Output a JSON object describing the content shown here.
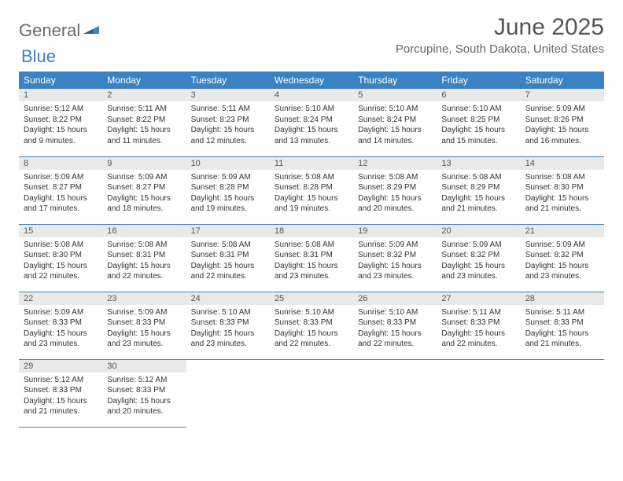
{
  "logo": {
    "text_part1": "General",
    "text_part2": "Blue",
    "text_color": "#6b6b6b",
    "accent_color": "#3b82c4"
  },
  "header": {
    "title": "June 2025",
    "location": "Porcupine, South Dakota, United States",
    "title_color": "#555555",
    "title_fontsize": 30,
    "location_color": "#666666",
    "location_fontsize": 15
  },
  "calendar": {
    "header_bg": "#3b82c4",
    "header_text_color": "#ffffff",
    "daynum_bg": "#e9e9e9",
    "daynum_color": "#555555",
    "cell_border_color": "#3b82c4",
    "body_text_color": "#333333",
    "day_names": [
      "Sunday",
      "Monday",
      "Tuesday",
      "Wednesday",
      "Thursday",
      "Friday",
      "Saturday"
    ],
    "days": [
      {
        "n": 1,
        "sunrise": "5:12 AM",
        "sunset": "8:22 PM",
        "dl": "15 hours and 9 minutes."
      },
      {
        "n": 2,
        "sunrise": "5:11 AM",
        "sunset": "8:22 PM",
        "dl": "15 hours and 11 minutes."
      },
      {
        "n": 3,
        "sunrise": "5:11 AM",
        "sunset": "8:23 PM",
        "dl": "15 hours and 12 minutes."
      },
      {
        "n": 4,
        "sunrise": "5:10 AM",
        "sunset": "8:24 PM",
        "dl": "15 hours and 13 minutes."
      },
      {
        "n": 5,
        "sunrise": "5:10 AM",
        "sunset": "8:24 PM",
        "dl": "15 hours and 14 minutes."
      },
      {
        "n": 6,
        "sunrise": "5:10 AM",
        "sunset": "8:25 PM",
        "dl": "15 hours and 15 minutes."
      },
      {
        "n": 7,
        "sunrise": "5:09 AM",
        "sunset": "8:26 PM",
        "dl": "15 hours and 16 minutes."
      },
      {
        "n": 8,
        "sunrise": "5:09 AM",
        "sunset": "8:27 PM",
        "dl": "15 hours and 17 minutes."
      },
      {
        "n": 9,
        "sunrise": "5:09 AM",
        "sunset": "8:27 PM",
        "dl": "15 hours and 18 minutes."
      },
      {
        "n": 10,
        "sunrise": "5:09 AM",
        "sunset": "8:28 PM",
        "dl": "15 hours and 19 minutes."
      },
      {
        "n": 11,
        "sunrise": "5:08 AM",
        "sunset": "8:28 PM",
        "dl": "15 hours and 19 minutes."
      },
      {
        "n": 12,
        "sunrise": "5:08 AM",
        "sunset": "8:29 PM",
        "dl": "15 hours and 20 minutes."
      },
      {
        "n": 13,
        "sunrise": "5:08 AM",
        "sunset": "8:29 PM",
        "dl": "15 hours and 21 minutes."
      },
      {
        "n": 14,
        "sunrise": "5:08 AM",
        "sunset": "8:30 PM",
        "dl": "15 hours and 21 minutes."
      },
      {
        "n": 15,
        "sunrise": "5:08 AM",
        "sunset": "8:30 PM",
        "dl": "15 hours and 22 minutes."
      },
      {
        "n": 16,
        "sunrise": "5:08 AM",
        "sunset": "8:31 PM",
        "dl": "15 hours and 22 minutes."
      },
      {
        "n": 17,
        "sunrise": "5:08 AM",
        "sunset": "8:31 PM",
        "dl": "15 hours and 22 minutes."
      },
      {
        "n": 18,
        "sunrise": "5:08 AM",
        "sunset": "8:31 PM",
        "dl": "15 hours and 23 minutes."
      },
      {
        "n": 19,
        "sunrise": "5:09 AM",
        "sunset": "8:32 PM",
        "dl": "15 hours and 23 minutes."
      },
      {
        "n": 20,
        "sunrise": "5:09 AM",
        "sunset": "8:32 PM",
        "dl": "15 hours and 23 minutes."
      },
      {
        "n": 21,
        "sunrise": "5:09 AM",
        "sunset": "8:32 PM",
        "dl": "15 hours and 23 minutes."
      },
      {
        "n": 22,
        "sunrise": "5:09 AM",
        "sunset": "8:33 PM",
        "dl": "15 hours and 23 minutes."
      },
      {
        "n": 23,
        "sunrise": "5:09 AM",
        "sunset": "8:33 PM",
        "dl": "15 hours and 23 minutes."
      },
      {
        "n": 24,
        "sunrise": "5:10 AM",
        "sunset": "8:33 PM",
        "dl": "15 hours and 23 minutes."
      },
      {
        "n": 25,
        "sunrise": "5:10 AM",
        "sunset": "8:33 PM",
        "dl": "15 hours and 22 minutes."
      },
      {
        "n": 26,
        "sunrise": "5:10 AM",
        "sunset": "8:33 PM",
        "dl": "15 hours and 22 minutes."
      },
      {
        "n": 27,
        "sunrise": "5:11 AM",
        "sunset": "8:33 PM",
        "dl": "15 hours and 22 minutes."
      },
      {
        "n": 28,
        "sunrise": "5:11 AM",
        "sunset": "8:33 PM",
        "dl": "15 hours and 21 minutes."
      },
      {
        "n": 29,
        "sunrise": "5:12 AM",
        "sunset": "8:33 PM",
        "dl": "15 hours and 21 minutes."
      },
      {
        "n": 30,
        "sunrise": "5:12 AM",
        "sunset": "8:33 PM",
        "dl": "15 hours and 20 minutes."
      }
    ],
    "labels": {
      "sunrise": "Sunrise:",
      "sunset": "Sunset:",
      "daylight": "Daylight:"
    },
    "first_weekday_index": 0,
    "trailing_empty": 5
  }
}
